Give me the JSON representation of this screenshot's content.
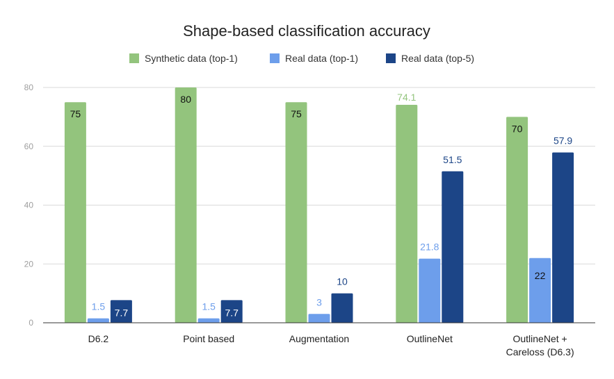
{
  "chart_data": {
    "type": "bar",
    "title": "Shape-based classification accuracy",
    "xlabel": "",
    "ylabel": "",
    "ylim": [
      0,
      80
    ],
    "yticks": [
      0,
      20,
      40,
      60,
      80
    ],
    "grid": true,
    "legend_position": "top",
    "categories": [
      "D6.2",
      "Point based",
      "Augmentation",
      "OutlineNet",
      "OutlineNet + Careloss (D6.3)"
    ],
    "series": [
      {
        "name": "Synthetic data (top-1)",
        "color": "#93c47d",
        "values": [
          75,
          80,
          75,
          74.1,
          70
        ]
      },
      {
        "name": "Real data (top-1)",
        "color": "#6d9eeb",
        "values": [
          1.5,
          1.5,
          3,
          21.8,
          22
        ]
      },
      {
        "name": "Real data (top-5)",
        "color": "#1c4587",
        "values": [
          7.7,
          7.7,
          10,
          51.5,
          57.9
        ]
      }
    ]
  }
}
